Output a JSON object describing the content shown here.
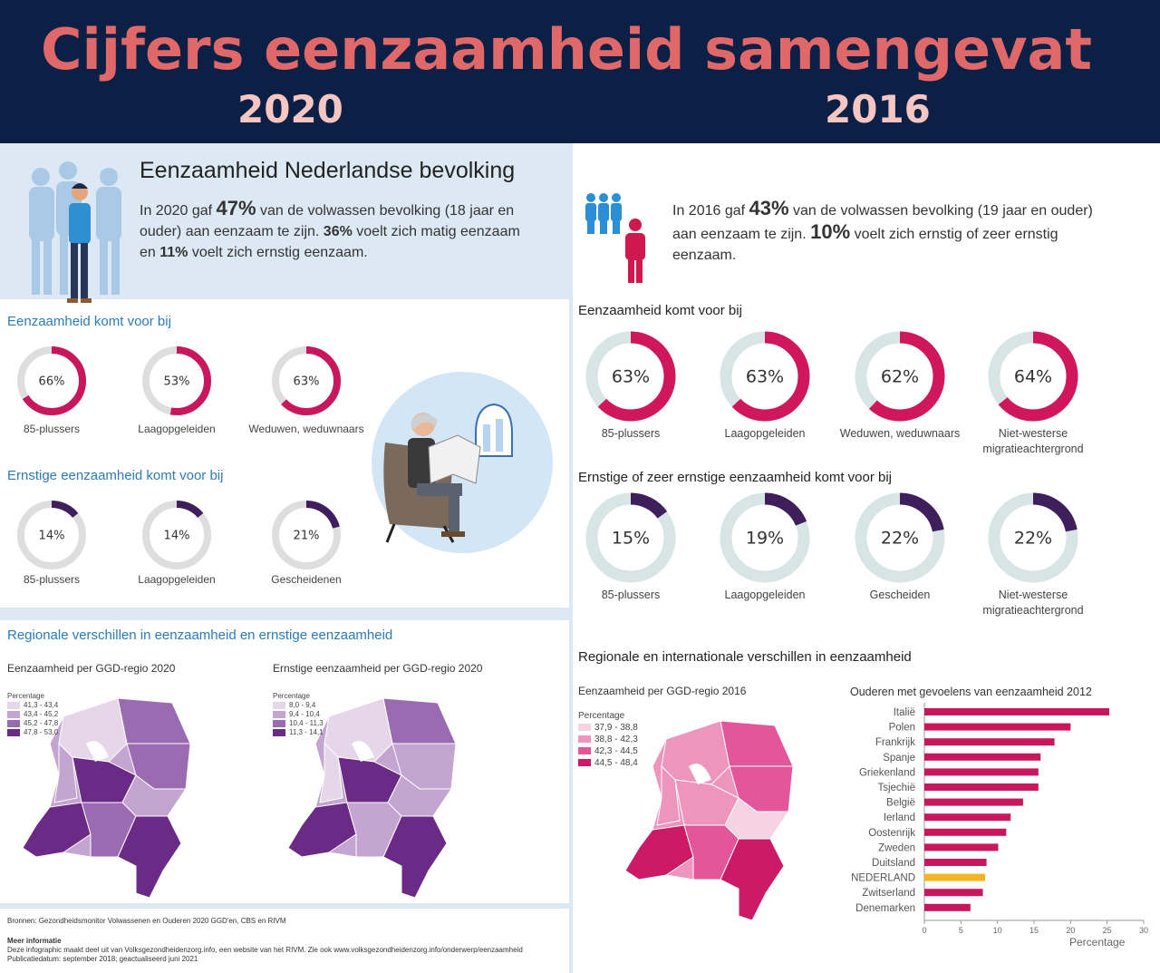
{
  "header": {
    "title": "Cijfers eenzaamheid samengevat",
    "year_left": "2020",
    "year_right": "2016"
  },
  "colors": {
    "header_bg": "#0c1f45",
    "title": "#e06868",
    "magenta": "#c8175d",
    "purple": "#3e1f5c",
    "accent_blue": "#2b7bb9",
    "nederland_bar": "#f5b324"
  },
  "left": {
    "intro_title": "Eenzaamheid Nederlandse bevolking",
    "intro_parts": [
      "In 2020 gaf ",
      "47%",
      " van de volwassen bevolking (18 jaar en ouder) aan eenzaam te zijn. ",
      "36%",
      " voelt zich matig eenzaam en ",
      "11%",
      " voelt zich ernstig eenzaam."
    ],
    "section1_title": "Eenzaamheid komt voor bij",
    "donuts1": [
      {
        "value": 66,
        "label": "66%",
        "caption": "85-plussers"
      },
      {
        "value": 53,
        "label": "53%",
        "caption": "Laagopgeleiden"
      },
      {
        "value": 63,
        "label": "63%",
        "caption": "Weduwen, weduwnaars"
      }
    ],
    "section2_title": "Ernstige eenzaamheid komt voor bij",
    "donuts2": [
      {
        "value": 14,
        "label": "14%",
        "caption": "85-plussers"
      },
      {
        "value": 14,
        "label": "14%",
        "caption": "Laagopgeleiden"
      },
      {
        "value": 21,
        "label": "21%",
        "caption": "Gescheidenen"
      }
    ],
    "regional_title": "Regionale verschillen in eenzaamheid en ernstige eenzaamheid",
    "map1": {
      "title": "Eenzaamheid per GGD-regio 2020",
      "legend_title": "Percentage",
      "legend": [
        "41,3 - 43,4",
        "43,4 - 45,2",
        "45,2 - 47,8",
        "47,8 - 53,0"
      ],
      "colors": [
        "#e6d6ea",
        "#c4a4d0",
        "#9a6bb0",
        "#6a2a86"
      ]
    },
    "map2": {
      "title": "Ernstige eenzaamheid per GGD-regio 2020",
      "legend_title": "Percentage",
      "legend": [
        "8,0 - 9,4",
        "9,4 - 10,4",
        "10,4 - 11,3",
        "11,3 - 14,1"
      ],
      "colors": [
        "#e6d6ea",
        "#c4a4d0",
        "#9a6bb0",
        "#6a2a86"
      ]
    },
    "footer": {
      "sources": "Bronnen: Gezondheidsmonitor Volwassenen en Ouderen 2020 GGD'en, CBS en RIVM",
      "more_title": "Meer informatie",
      "more_text": "Deze infographic maakt deel uit van Volksgezondheidenzorg.info, een website van het RIVM. Zie ook www.volksgezondheidenzorg.info/onderwerp/eenzaamheid",
      "pub": "Publicatiedatum: september 2018; geactualiseerd juni 2021"
    }
  },
  "right": {
    "intro_parts": [
      "In 2016 gaf ",
      "43%",
      " van de volwassen bevolking (19 jaar en ouder) aan eenzaam te zijn. ",
      "10%",
      " voelt zich ernstig of zeer ernstig eenzaam."
    ],
    "section1_title": "Eenzaamheid komt voor bij",
    "donuts1": [
      {
        "value": 63,
        "label": "63%",
        "caption": "85-plussers"
      },
      {
        "value": 63,
        "label": "63%",
        "caption": "Laagopgeleiden"
      },
      {
        "value": 62,
        "label": "62%",
        "caption": "Weduwen, weduwnaars"
      },
      {
        "value": 64,
        "label": "64%",
        "caption": "Niet-westerse migratieachtergrond"
      }
    ],
    "section2_title": "Ernstige  of zeer ernstige eenzaamheid komt voor bij",
    "donuts2": [
      {
        "value": 15,
        "label": "15%",
        "caption": "85-plussers"
      },
      {
        "value": 19,
        "label": "19%",
        "caption": "Laagopgeleiden"
      },
      {
        "value": 22,
        "label": "22%",
        "caption": "Gescheiden"
      },
      {
        "value": 22,
        "label": "22%",
        "caption": "Niet-westerse migratieachtergrond"
      }
    ],
    "regional_title": "Regionale en internationale verschillen in eenzaamheid",
    "map": {
      "title": "Eenzaamheid per GGD-regio 2016",
      "legend_title": "Percentage",
      "legend": [
        "37,9 - 38,8",
        "38,8 - 42,3",
        "42,3 - 44,5",
        "44,5 - 48,4"
      ],
      "colors": [
        "#f6d3e2",
        "#ee95bd",
        "#e3569a",
        "#cc1a66"
      ]
    }
  },
  "chart_data": {
    "type": "bar",
    "orientation": "horizontal",
    "title": "Ouderen met gevoelens van eenzaamheid 2012",
    "xlabel": "Percentage",
    "xlim": [
      0,
      30
    ],
    "xticks": [
      0,
      5,
      10,
      15,
      20,
      25,
      30
    ],
    "categories": [
      "Italië",
      "Polen",
      "Frankrijk",
      "Spanje",
      "Griekenland",
      "Tsjechië",
      "België",
      "Ierland",
      "Oostenrijk",
      "Zweden",
      "Duitsland",
      "NEDERLAND",
      "Zwitserland",
      "Denemarken"
    ],
    "values": [
      25.3,
      20.0,
      17.8,
      15.9,
      15.6,
      15.6,
      13.5,
      11.8,
      11.2,
      10.1,
      8.5,
      8.3,
      8.0,
      6.3
    ],
    "highlight": "NEDERLAND"
  }
}
